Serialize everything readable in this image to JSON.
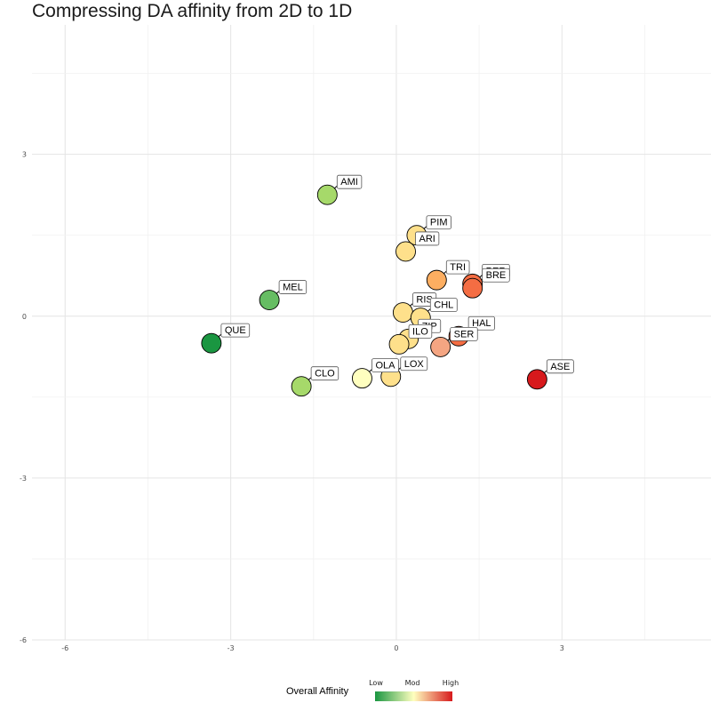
{
  "chart_data": {
    "type": "scatter",
    "title": "Compressing DA affinity from 2D to 1D",
    "xlabel": "",
    "ylabel": "",
    "xlim": [
      -6.6,
      5.7
    ],
    "ylim": [
      -6,
      5.4
    ],
    "x_ticks": [
      -6,
      -3,
      0,
      3
    ],
    "x_tick_labels": [
      "-6",
      "-3",
      "0",
      "3"
    ],
    "y_ticks": [
      -6,
      -3,
      0,
      3
    ],
    "y_tick_labels": [
      "-6",
      "-3",
      "0",
      "3"
    ],
    "grid": true,
    "points": [
      {
        "label": "AMI",
        "x": -1.25,
        "y": 2.25,
        "color": "#a6d96a"
      },
      {
        "label": "PIM",
        "x": 0.37,
        "y": 1.5,
        "color": "#fee08b"
      },
      {
        "label": "ARI",
        "x": 0.17,
        "y": 1.2,
        "color": "#fee08b"
      },
      {
        "label": "TRI",
        "x": 0.73,
        "y": 0.67,
        "color": "#fdae61"
      },
      {
        "label": "PER",
        "x": 1.38,
        "y": 0.6,
        "color": "#f46d43"
      },
      {
        "label": "BRE",
        "x": 1.38,
        "y": 0.52,
        "color": "#f46d43"
      },
      {
        "label": "MEL",
        "x": -2.3,
        "y": 0.3,
        "color": "#66bd63"
      },
      {
        "label": "RIS",
        "x": 0.12,
        "y": 0.07,
        "color": "#fee08b"
      },
      {
        "label": "CHL",
        "x": 0.44,
        "y": -0.03,
        "color": "#fee08b"
      },
      {
        "label": "ZIP",
        "x": 0.22,
        "y": -0.42,
        "color": "#fee08b"
      },
      {
        "label": "HAL",
        "x": 1.13,
        "y": -0.37,
        "color": "#f46d43"
      },
      {
        "label": "ILO",
        "x": 0.05,
        "y": -0.52,
        "color": "#fee08b"
      },
      {
        "label": "SER",
        "x": 0.8,
        "y": -0.57,
        "color": "#f4a582"
      },
      {
        "label": "QUE",
        "x": -3.35,
        "y": -0.5,
        "color": "#1a9641"
      },
      {
        "label": "OLA",
        "x": -0.62,
        "y": -1.15,
        "color": "#ffffbf"
      },
      {
        "label": "LOX",
        "x": -0.1,
        "y": -1.12,
        "color": "#fee08b"
      },
      {
        "label": "CLO",
        "x": -1.72,
        "y": -1.3,
        "color": "#a6d96a"
      },
      {
        "label": "ASE",
        "x": 2.55,
        "y": -1.17,
        "color": "#d7191c"
      }
    ],
    "legend": {
      "title": "Overall Affinity",
      "position": "bottom",
      "breaks": [
        "Low",
        "Mod",
        "High"
      ],
      "colors": [
        "#1a9641",
        "#ffffbf",
        "#d7191c"
      ]
    }
  }
}
